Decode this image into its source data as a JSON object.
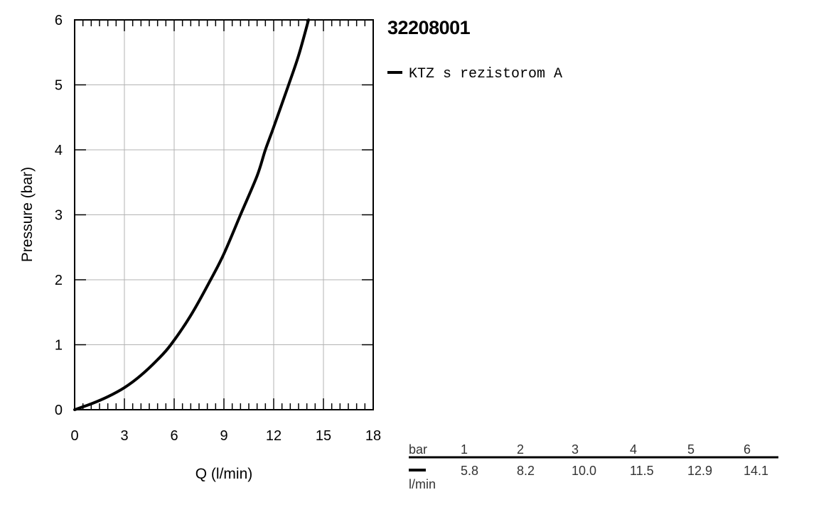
{
  "chart_data": {
    "type": "line",
    "title": "32208001",
    "xlabel": "Q (l/min)",
    "ylabel": "Pressure (bar)",
    "xlim": [
      0,
      18
    ],
    "ylim": [
      0,
      6
    ],
    "x_ticks": [
      "0",
      "3",
      "6",
      "9",
      "12",
      "15",
      "18"
    ],
    "y_ticks": [
      "0",
      "1",
      "2",
      "3",
      "4",
      "5",
      "6"
    ],
    "grid": true,
    "legend_placement": "right",
    "series": [
      {
        "name": "KTZ s rezistorom A",
        "color": "#000000",
        "x": [
          0,
          1,
          2,
          3,
          4,
          5,
          5.8,
          7,
          8.2,
          9,
          10.0,
          11,
          11.5,
          12,
          12.9,
          13.5,
          14.1
        ],
        "y": [
          0,
          0.09,
          0.2,
          0.34,
          0.53,
          0.77,
          1,
          1.45,
          2,
          2.4,
          3,
          3.6,
          4,
          4.35,
          5,
          5.45,
          6
        ]
      }
    ],
    "table": {
      "row_label_top": "bar",
      "row_label_bottom": "l/min",
      "pressures": [
        "1",
        "2",
        "3",
        "4",
        "5",
        "6"
      ],
      "flows": [
        "5.8",
        "8.2",
        "10.0",
        "11.5",
        "12.9",
        "14.1"
      ]
    }
  }
}
